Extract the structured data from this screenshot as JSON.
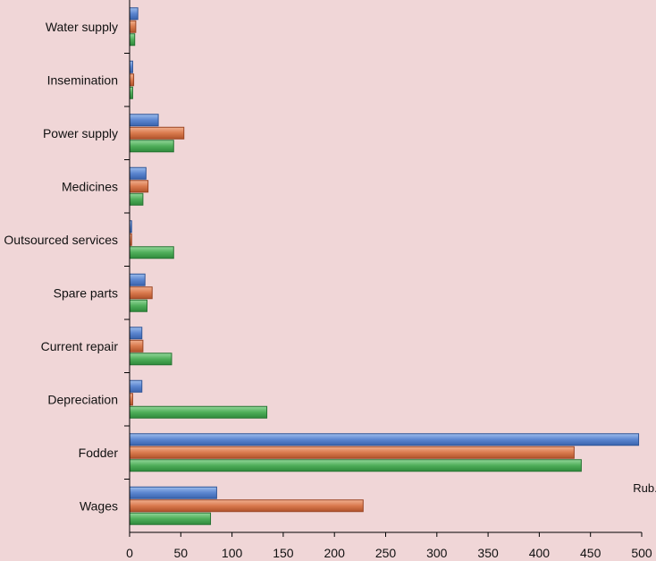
{
  "chart_data": {
    "type": "bar",
    "orientation": "horizontal",
    "title": "",
    "xlabel": "Rub.",
    "ylabel": "",
    "xlim": [
      0,
      500
    ],
    "x_ticks": [
      0,
      50,
      100,
      150,
      200,
      250,
      300,
      350,
      400,
      450,
      500
    ],
    "grid": false,
    "legend": "none",
    "categories": [
      "Water supply",
      "Insemination",
      "Power supply",
      "Medicines",
      "Outsourced services",
      "Spare parts",
      "Current repair",
      "Depreciation",
      "Fodder",
      "Wages"
    ],
    "series": [
      {
        "name": "series-blue",
        "color": "#5b86d0",
        "values": [
          8,
          3,
          28,
          16,
          2,
          15,
          12,
          12,
          497,
          85
        ]
      },
      {
        "name": "series-orange",
        "color": "#d97a4e",
        "values": [
          6,
          4,
          53,
          18,
          2,
          22,
          13,
          3,
          434,
          228
        ]
      },
      {
        "name": "series-green",
        "color": "#4fae5a",
        "values": [
          5,
          3,
          43,
          13,
          43,
          17,
          41,
          134,
          441,
          79
        ]
      }
    ]
  }
}
